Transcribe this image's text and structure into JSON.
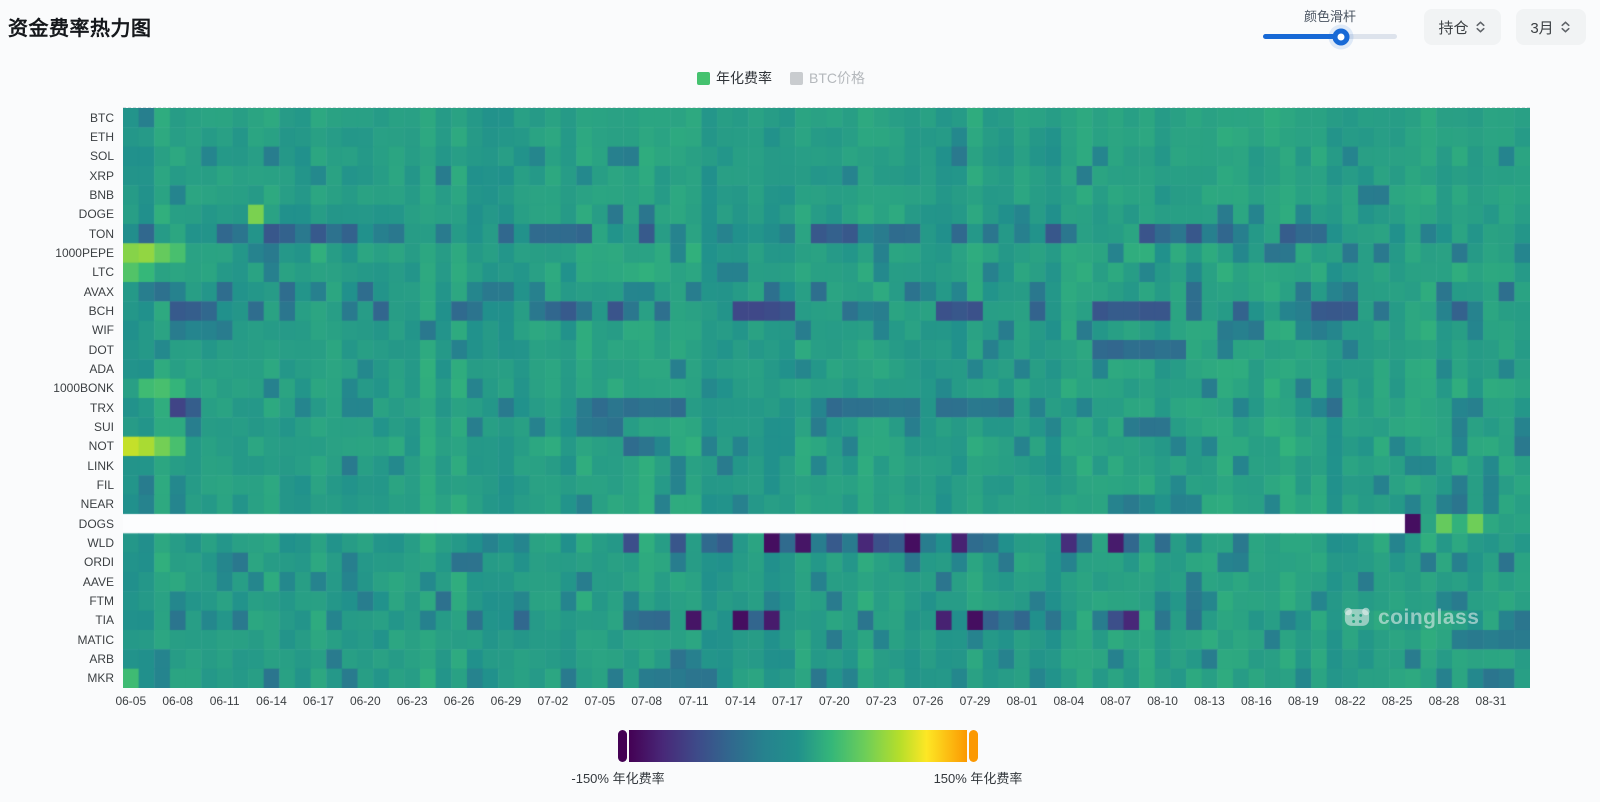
{
  "page": {
    "title": "资金费率热力图",
    "background": "#fafbfc"
  },
  "controls": {
    "slider_label": "颜色滑杆",
    "slider_value_pct": 58,
    "accent_color": "#1769d6",
    "selects": [
      {
        "label": "持仓"
      },
      {
        "label": "3月"
      }
    ]
  },
  "legend": [
    {
      "label": "年化费率",
      "color": "#45c26f",
      "active": true
    },
    {
      "label": "BTC价格",
      "color": "#c9cccf",
      "active": false
    }
  ],
  "watermark": {
    "text": "coinglass"
  },
  "chart_data": {
    "type": "heatmap",
    "title": "资金费率热力图",
    "x_unit": "date",
    "n_cols": 90,
    "tick_step_cols": 3,
    "tick_labels": [
      "06-05",
      "06-08",
      "06-11",
      "06-14",
      "06-17",
      "06-20",
      "06-23",
      "06-26",
      "06-29",
      "07-02",
      "07-05",
      "07-08",
      "07-11",
      "07-14",
      "07-17",
      "07-20",
      "07-23",
      "07-26",
      "07-29",
      "08-01",
      "08-04",
      "08-07",
      "08-10",
      "08-13",
      "08-16",
      "08-19",
      "08-22",
      "08-25",
      "08-28",
      "08-31"
    ],
    "value_domain": [
      -150,
      150
    ],
    "value_unit": "% 年化费率",
    "colorbar": {
      "min_label": "-150% 年化费率",
      "max_label": "150% 年化费率"
    },
    "colorscale_stops": [
      [
        0,
        "#440154"
      ],
      [
        0.1,
        "#482878"
      ],
      [
        0.2,
        "#3e4a89"
      ],
      [
        0.3,
        "#31688e"
      ],
      [
        0.4,
        "#26828e"
      ],
      [
        0.5,
        "#21918c"
      ],
      [
        0.6,
        "#35b779"
      ],
      [
        0.7,
        "#6ece58"
      ],
      [
        0.8,
        "#b5de2b"
      ],
      [
        0.88,
        "#fde725"
      ],
      [
        1,
        "#fb9902"
      ]
    ],
    "render_seed": 7,
    "rows": [
      {
        "symbol": "BTC",
        "base": 11,
        "noise": 5,
        "dark_prob": 0.05,
        "dark_range": [
          -15,
          -35
        ]
      },
      {
        "symbol": "ETH",
        "base": 11,
        "noise": 4,
        "dark_prob": 0.03,
        "dark_range": [
          -10,
          -25
        ]
      },
      {
        "symbol": "SOL",
        "base": 10,
        "noise": 6,
        "dark_prob": 0.08,
        "dark_range": [
          -20,
          -45
        ],
        "runs": [
          [
            31,
            32,
            -40
          ]
        ]
      },
      {
        "symbol": "XRP",
        "base": 10,
        "noise": 6,
        "dark_prob": 0.07,
        "dark_range": [
          -15,
          -40
        ]
      },
      {
        "symbol": "BNB",
        "base": 11,
        "noise": 5,
        "dark_prob": 0.05,
        "dark_range": [
          -15,
          -35
        ],
        "runs": [
          [
            79,
            80,
            -35
          ]
        ]
      },
      {
        "symbol": "DOGE",
        "base": 10,
        "noise": 7,
        "dark_prob": 0.07,
        "dark_range": [
          -20,
          -45
        ],
        "lights": [
          [
            8,
            65
          ]
        ],
        "runs": [
          [
            31,
            31,
            -45
          ]
        ]
      },
      {
        "symbol": "TON",
        "base": 7,
        "noise": 8,
        "dark_prob": 0.45,
        "dark_range": [
          -25,
          -80
        ],
        "segments": [
          {
            "c0": 78,
            "c1": 89,
            "dark_prob": 0.08,
            "dark_range": [
              -20,
              -40
            ]
          }
        ],
        "spikes": [
          [
            1,
            -60
          ]
        ]
      },
      {
        "symbol": "1000PEPE",
        "base": 12,
        "noise": 8,
        "dark_prob": 0.15,
        "dark_range": [
          -20,
          -50
        ],
        "lights": [
          [
            0,
            70
          ],
          [
            1,
            75
          ],
          [
            2,
            55
          ],
          [
            3,
            40
          ]
        ]
      },
      {
        "symbol": "LTC",
        "base": 12,
        "noise": 6,
        "dark_prob": 0.05,
        "dark_range": [
          -15,
          -35
        ],
        "lights": [
          [
            0,
            45
          ],
          [
            1,
            30
          ]
        ]
      },
      {
        "symbol": "AVAX",
        "base": 10,
        "noise": 7,
        "dark_prob": 0.22,
        "dark_range": [
          -20,
          -55
        ]
      },
      {
        "symbol": "BCH",
        "base": 8,
        "noise": 8,
        "dark_prob": 0.4,
        "dark_range": [
          -25,
          -85
        ],
        "runs": [
          [
            39,
            42,
            -88
          ],
          [
            62,
            66,
            -75
          ]
        ],
        "spikes": [
          [
            4,
            -70
          ],
          [
            5,
            -60
          ]
        ]
      },
      {
        "symbol": "WIF",
        "base": 11,
        "noise": 7,
        "dark_prob": 0.12,
        "dark_range": [
          -20,
          -45
        ]
      },
      {
        "symbol": "DOT",
        "base": 11,
        "noise": 6,
        "dark_prob": 0.08,
        "dark_range": [
          -15,
          -40
        ],
        "runs": [
          [
            62,
            67,
            -55
          ]
        ]
      },
      {
        "symbol": "ADA",
        "base": 11,
        "noise": 6,
        "dark_prob": 0.07,
        "dark_range": [
          -15,
          -35
        ]
      },
      {
        "symbol": "1000BONK",
        "base": 12,
        "noise": 7,
        "dark_prob": 0.08,
        "dark_range": [
          -15,
          -40
        ],
        "lights": [
          [
            1,
            35
          ],
          [
            2,
            40
          ],
          [
            3,
            28
          ]
        ]
      },
      {
        "symbol": "TRX",
        "base": 10,
        "noise": 7,
        "dark_prob": 0.16,
        "dark_range": [
          -20,
          -55
        ],
        "spikes": [
          [
            3,
            -95
          ],
          [
            4,
            -70
          ]
        ],
        "runs": [
          [
            30,
            35,
            -50
          ],
          [
            45,
            50,
            -50
          ],
          [
            52,
            56,
            -45
          ]
        ]
      },
      {
        "symbol": "SUI",
        "base": 11,
        "noise": 6,
        "dark_prob": 0.1,
        "dark_range": [
          -15,
          -40
        ],
        "runs": [
          [
            30,
            31,
            -45
          ],
          [
            64,
            66,
            -45
          ]
        ]
      },
      {
        "symbol": "NOT",
        "base": 12,
        "noise": 8,
        "dark_prob": 0.08,
        "dark_range": [
          -15,
          -40
        ],
        "lights": [
          [
            0,
            95
          ],
          [
            1,
            85
          ],
          [
            2,
            62
          ],
          [
            3,
            40
          ]
        ],
        "spikes": [
          [
            32,
            -55
          ],
          [
            33,
            -45
          ]
        ]
      },
      {
        "symbol": "LINK",
        "base": 11,
        "noise": 6,
        "dark_prob": 0.08,
        "dark_range": [
          -15,
          -40
        ]
      },
      {
        "symbol": "FIL",
        "base": 11,
        "noise": 6,
        "dark_prob": 0.09,
        "dark_range": [
          -15,
          -40
        ]
      },
      {
        "symbol": "NEAR",
        "base": 11,
        "noise": 6,
        "dark_prob": 0.08,
        "dark_range": [
          -15,
          -40
        ],
        "segments": [
          {
            "c0": 62,
            "c1": 89,
            "dark_prob": 0.3,
            "dark_range": [
              -20,
              -50
            ]
          }
        ]
      },
      {
        "symbol": "DOGS",
        "base": 12,
        "noise": 5,
        "dark_prob": 0.05,
        "dark_range": [
          -15,
          -30
        ],
        "null_until": 82,
        "tail_values": [
          -140,
          15,
          55,
          25,
          60,
          18,
          12,
          14
        ]
      },
      {
        "symbol": "WLD",
        "base": 9,
        "noise": 8,
        "dark_prob": 0.12,
        "dark_range": [
          -20,
          -50
        ],
        "segments": [
          {
            "c0": 30,
            "c1": 66,
            "dark_prob": 0.55,
            "dark_range": [
              -30,
              -90
            ]
          }
        ],
        "spikes": [
          [
            41,
            -140
          ],
          [
            43,
            -135
          ],
          [
            47,
            -120
          ],
          [
            50,
            -140
          ],
          [
            53,
            -125
          ],
          [
            60,
            -115
          ],
          [
            63,
            -130
          ]
        ]
      },
      {
        "symbol": "ORDI",
        "base": 10,
        "noise": 7,
        "dark_prob": 0.15,
        "dark_range": [
          -20,
          -50
        ]
      },
      {
        "symbol": "AAVE",
        "base": 11,
        "noise": 6,
        "dark_prob": 0.08,
        "dark_range": [
          -15,
          -40
        ],
        "spikes": [
          [
            52,
            -45
          ]
        ]
      },
      {
        "symbol": "FTM",
        "base": 10,
        "noise": 7,
        "dark_prob": 0.14,
        "dark_range": [
          -20,
          -50
        ]
      },
      {
        "symbol": "TIA",
        "base": 9,
        "noise": 8,
        "dark_prob": 0.12,
        "dark_range": [
          -20,
          -50
        ],
        "segments": [
          {
            "c0": 31,
            "c1": 45,
            "dark_prob": 0.55,
            "dark_range": [
              -35,
              -90
            ]
          },
          {
            "c0": 50,
            "c1": 66,
            "dark_prob": 0.5,
            "dark_range": [
              -35,
              -90
            ]
          }
        ],
        "spikes": [
          [
            25,
            -60
          ],
          [
            36,
            -135
          ],
          [
            39,
            -140
          ],
          [
            41,
            -130
          ],
          [
            52,
            -125
          ],
          [
            54,
            -140
          ],
          [
            64,
            -120
          ]
        ]
      },
      {
        "symbol": "MATIC",
        "base": 10,
        "noise": 6,
        "dark_prob": 0.1,
        "dark_range": [
          -15,
          -45
        ],
        "runs": [
          [
            85,
            89,
            -35
          ]
        ]
      },
      {
        "symbol": "ARB",
        "base": 10,
        "noise": 6,
        "dark_prob": 0.1,
        "dark_range": [
          -15,
          -40
        ],
        "runs": [
          [
            35,
            35,
            -40
          ]
        ]
      },
      {
        "symbol": "MKR",
        "base": 10,
        "noise": 7,
        "dark_prob": 0.12,
        "dark_range": [
          -18,
          -45
        ],
        "runs": [
          [
            33,
            37,
            -40
          ]
        ],
        "lights": [
          [
            0,
            35
          ]
        ]
      }
    ]
  }
}
